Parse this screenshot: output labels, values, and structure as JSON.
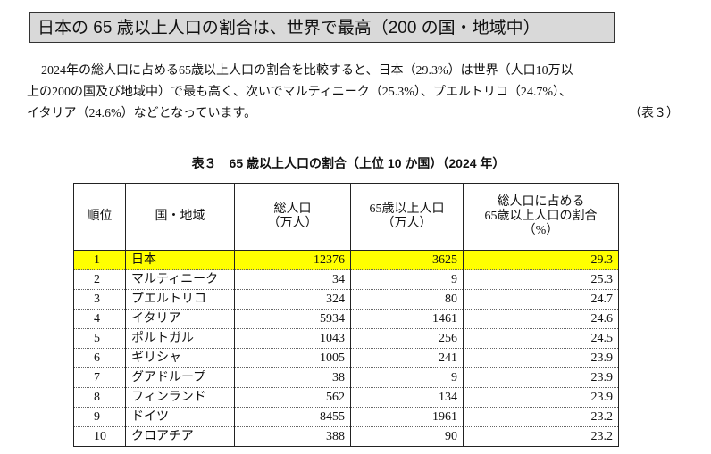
{
  "header": {
    "title": "日本の 65 歳以上人口の割合は、世界で最高（200 の国・地域中）"
  },
  "paragraph": {
    "lines": [
      "2024年の総人口に占める65歳以上人口の割合を比較すると、日本（29.3%）は世界（人口10万以",
      "上の200の国及び地域中）で最も高く、次いでマルティニーク（25.3%）、プエルトリコ（24.7%）、",
      "イタリア（24.6%）などとなっています。"
    ],
    "reference": "（表３）"
  },
  "table": {
    "caption": "表３　65 歳以上人口の割合（上位 10 か国）（2024 年）",
    "columns": [
      [
        "順位"
      ],
      [
        "国・地域"
      ],
      [
        "総人口",
        "（万人）"
      ],
      [
        "65歳以上人口",
        "（万人）"
      ],
      [
        "総人口に占める",
        "65歳以上人口の割合",
        "（%）"
      ]
    ],
    "rows": [
      [
        "1",
        "日本",
        "12376",
        "3625",
        "29.3"
      ],
      [
        "2",
        "マルティニーク",
        "34",
        "9",
        "25.3"
      ],
      [
        "3",
        "プエルトリコ",
        "324",
        "80",
        "24.7"
      ],
      [
        "4",
        "イタリア",
        "5934",
        "1461",
        "24.6"
      ],
      [
        "5",
        "ポルトガル",
        "1043",
        "256",
        "24.5"
      ],
      [
        "6",
        "ギリシャ",
        "1005",
        "241",
        "23.9"
      ],
      [
        "7",
        "グアドループ",
        "38",
        "9",
        "23.9"
      ],
      [
        "8",
        "フィンランド",
        "562",
        "134",
        "23.9"
      ],
      [
        "9",
        "ドイツ",
        "8455",
        "1961",
        "23.2"
      ],
      [
        "10",
        "クロアチア",
        "388",
        "90",
        "23.2"
      ]
    ]
  }
}
